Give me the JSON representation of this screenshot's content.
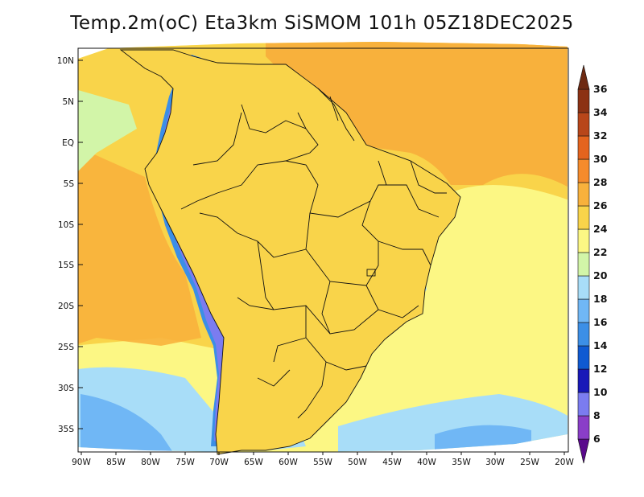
{
  "title": "Temp.2m(oC) Eta3km SiSMOM 101h 05Z18DEC2025",
  "map": {
    "lat_labels": [
      "10N",
      "5N",
      "EQ",
      "5S",
      "10S",
      "15S",
      "20S",
      "25S",
      "30S",
      "35S"
    ],
    "lon_labels": [
      "90W",
      "85W",
      "80W",
      "75W",
      "70W",
      "65W",
      "60W",
      "55W",
      "50W",
      "45W",
      "40W",
      "35W",
      "30W",
      "25W",
      "20W"
    ],
    "lat_range": [
      12,
      -38
    ],
    "lon_range": [
      -91,
      -20
    ]
  },
  "colorbar": {
    "unit": "oC",
    "levels": [
      "6",
      "8",
      "10",
      "12",
      "14",
      "16",
      "18",
      "20",
      "22",
      "24",
      "26",
      "28",
      "30",
      "32",
      "34",
      "36"
    ],
    "colors": [
      "#5a0a8c",
      "#8a3ec8",
      "#7b7cf0",
      "#1818b8",
      "#0f5ad2",
      "#3c8fe6",
      "#70b7f5",
      "#a8ddf8",
      "#d2f5a8",
      "#fcf784",
      "#f9d44a",
      "#f8b13c",
      "#f58b2c",
      "#e4641e",
      "#b8461a",
      "#8c3214",
      "#6e2a12"
    ]
  },
  "colors": {
    "ocean_tropical": "#f8b13c",
    "ocean_subtropical": "#f9d44a",
    "ocean_midlat": "#fcf784",
    "ocean_cool": "#a8ddf8",
    "land_warm": "#f9d44a",
    "andes_cold": "#5a0a8c",
    "border": "#111111"
  }
}
